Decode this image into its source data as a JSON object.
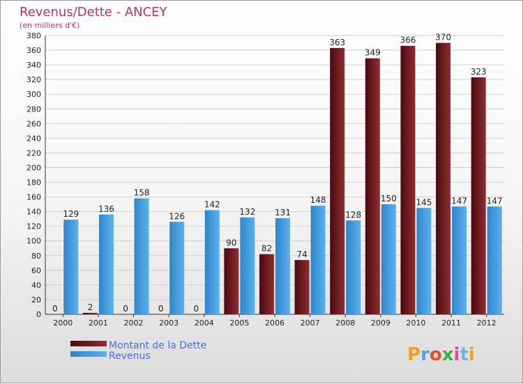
{
  "chart_data": {
    "type": "bar",
    "title": "Revenus/Dette - ANCEY",
    "subtitle": "(en milliers d'€)",
    "categories": [
      "2000",
      "2001",
      "2002",
      "2003",
      "2004",
      "2005",
      "2006",
      "2007",
      "2008",
      "2009",
      "2010",
      "2011",
      "2012"
    ],
    "series": [
      {
        "name": "Montant de la Dette",
        "color": "#7a1f22",
        "values": [
          0,
          2,
          0,
          0,
          0,
          90,
          82,
          74,
          363,
          349,
          366,
          370,
          323
        ]
      },
      {
        "name": "Revenus",
        "color": "#3c96dc",
        "values": [
          129,
          136,
          158,
          126,
          142,
          132,
          131,
          148,
          128,
          150,
          145,
          147,
          147
        ]
      }
    ],
    "ylim": [
      0,
      380
    ],
    "ytick_step": 20,
    "grid": true,
    "legend_position": "bottom-left"
  },
  "brand": {
    "logo_text": "Proxiti",
    "letter_colors": [
      "#f0a020",
      "#5aa0e0",
      "#e05030",
      "#3cb040",
      "#e04a9a",
      "#70b0e8",
      "#f0a020"
    ]
  }
}
